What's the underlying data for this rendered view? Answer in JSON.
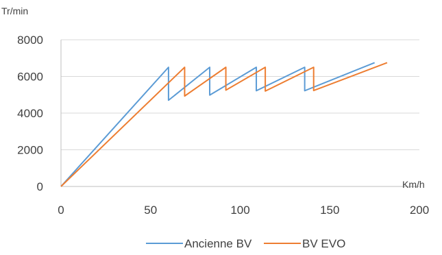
{
  "chart_data": {
    "type": "line",
    "title": "",
    "xlabel": "Km/h",
    "ylabel": "Tr/min",
    "xlim": [
      0,
      200
    ],
    "ylim": [
      0,
      8000
    ],
    "x_ticks": [
      0,
      50,
      100,
      150,
      200
    ],
    "y_ticks": [
      0,
      2000,
      4000,
      6000,
      8000
    ],
    "grid": "horizontal",
    "legend": "bottom",
    "series": [
      {
        "name": "Ancienne BV",
        "color": "#5b9bd5",
        "points": [
          [
            0,
            0
          ],
          [
            60,
            6500
          ],
          [
            60,
            4700
          ],
          [
            83,
            6500
          ],
          [
            83,
            4980
          ],
          [
            109,
            6500
          ],
          [
            109,
            5220
          ],
          [
            136,
            6500
          ],
          [
            136,
            5220
          ],
          [
            175,
            6750
          ]
        ]
      },
      {
        "name": "BV EVO",
        "color": "#ed7d31",
        "points": [
          [
            0,
            0
          ],
          [
            69,
            6500
          ],
          [
            69,
            4930
          ],
          [
            92,
            6500
          ],
          [
            92,
            5250
          ],
          [
            114,
            6500
          ],
          [
            114,
            5200
          ],
          [
            141,
            6500
          ],
          [
            141,
            5230
          ],
          [
            182,
            6750
          ]
        ]
      }
    ]
  }
}
